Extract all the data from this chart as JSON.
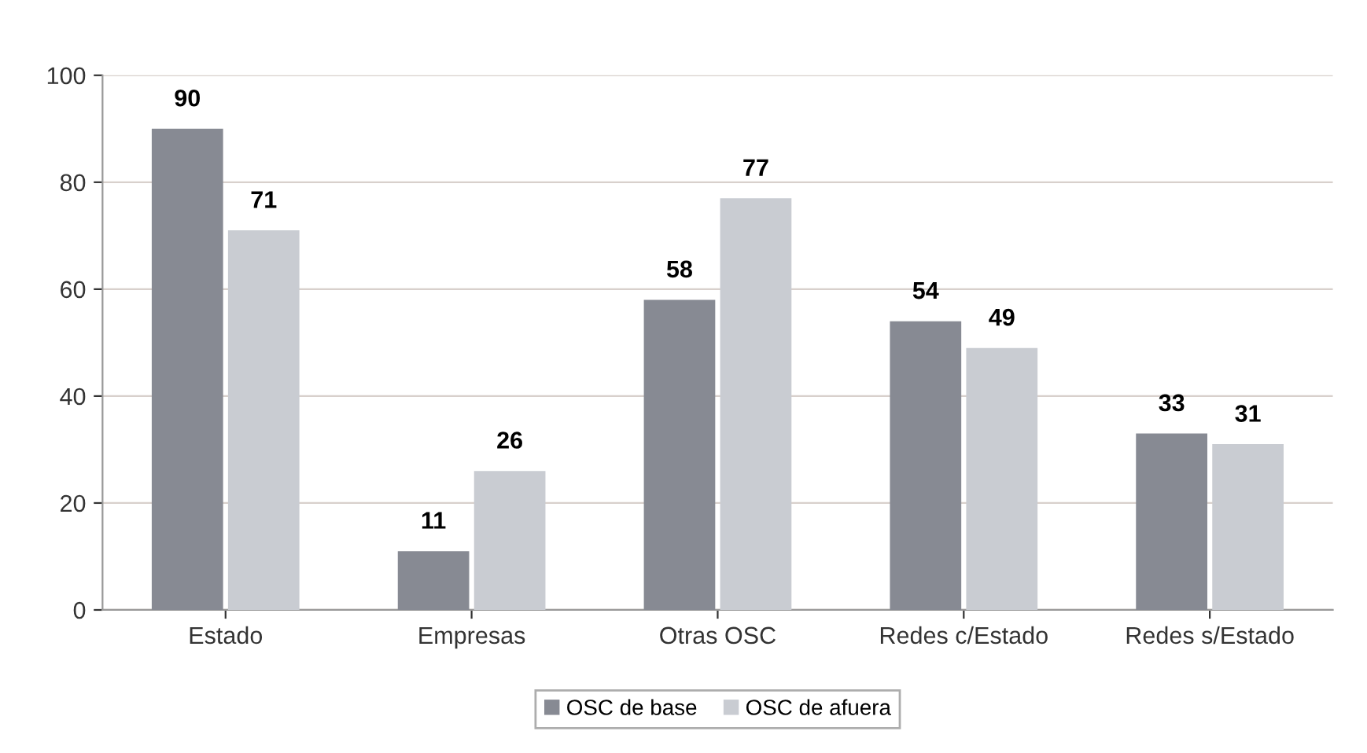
{
  "chart_data": {
    "type": "bar",
    "categories": [
      "Estado",
      "Empresas",
      "Otras OSC",
      "Redes c/Estado",
      "Redes s/Estado"
    ],
    "series": [
      {
        "name": "OSC de base",
        "color": "#878a93",
        "values": [
          90,
          11,
          58,
          54,
          33
        ]
      },
      {
        "name": "OSC de afuera",
        "color": "#c9ccd2",
        "values": [
          71,
          26,
          77,
          49,
          31
        ]
      }
    ],
    "ylim": [
      0,
      100
    ],
    "yticks": [
      0,
      20,
      40,
      60,
      80,
      100
    ],
    "grid": "y",
    "legend": "bottom",
    "data_labels": true
  }
}
